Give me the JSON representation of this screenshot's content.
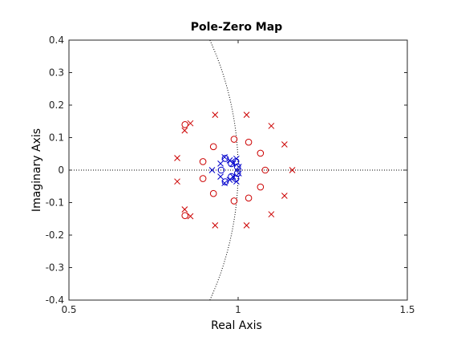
{
  "chart_data": {
    "type": "scatter",
    "title": "Pole-Zero Map",
    "xlabel": "Real Axis",
    "ylabel": "Imaginary Axis",
    "xlim": [
      0.5,
      1.5
    ],
    "ylim": [
      -0.4,
      0.4
    ],
    "xticks": [
      0.5,
      1,
      1.5
    ],
    "xtick_labels": [
      "0.5",
      "1",
      "1.5"
    ],
    "yticks": [
      -0.4,
      -0.3,
      -0.2,
      -0.1,
      0,
      0.1,
      0.2,
      0.3,
      0.4
    ],
    "ytick_labels": [
      "-0.4",
      "-0.3",
      "-0.2",
      "-0.1",
      "0",
      "0.1",
      "0.2",
      "0.3",
      "0.4"
    ],
    "grid": false,
    "reference_lines": {
      "unit_circle": true,
      "real_axis": true,
      "style": "dotted"
    },
    "series": [
      {
        "color": "#cc0000",
        "marker": "x",
        "points": [
          [
            0.932,
            0.17
          ],
          [
            1.025,
            0.17
          ],
          [
            1.098,
            0.136
          ],
          [
            1.137,
            0.079
          ],
          [
            1.16,
            0.0
          ],
          [
            1.137,
            -0.079
          ],
          [
            1.098,
            -0.136
          ],
          [
            1.025,
            -0.17
          ],
          [
            0.932,
            -0.17
          ],
          [
            0.859,
            0.144
          ],
          [
            0.842,
            0.122
          ],
          [
            0.82,
            0.037
          ],
          [
            0.82,
            -0.035
          ],
          [
            0.842,
            -0.121
          ],
          [
            0.859,
            -0.142
          ]
        ]
      },
      {
        "color": "#cc0000",
        "marker": "o",
        "points": [
          [
            0.843,
            0.14
          ],
          [
            0.927,
            0.072
          ],
          [
            0.988,
            0.095
          ],
          [
            1.031,
            0.086
          ],
          [
            1.066,
            0.052
          ],
          [
            1.08,
            0.0
          ],
          [
            1.066,
            -0.052
          ],
          [
            1.031,
            -0.086
          ],
          [
            0.988,
            -0.095
          ],
          [
            0.927,
            -0.072
          ],
          [
            0.896,
            0.026
          ],
          [
            0.896,
            -0.026
          ],
          [
            0.843,
            -0.14
          ]
        ]
      },
      {
        "color": "#0000cc",
        "marker": "x",
        "points": [
          [
            0.96,
            0.04
          ],
          [
            0.975,
            0.03
          ],
          [
            0.985,
            0.02
          ],
          [
            0.995,
            0.035
          ],
          [
            1.002,
            0.01
          ],
          [
            1.002,
            -0.01
          ],
          [
            0.995,
            -0.035
          ],
          [
            0.985,
            -0.02
          ],
          [
            0.975,
            -0.03
          ],
          [
            0.96,
            -0.04
          ],
          [
            0.948,
            0.02
          ],
          [
            0.948,
            -0.02
          ],
          [
            0.923,
            0.0
          ]
        ]
      },
      {
        "color": "#0000cc",
        "marker": "o",
        "points": [
          [
            0.962,
            0.036
          ],
          [
            0.98,
            0.02
          ],
          [
            0.993,
            0.026
          ],
          [
            0.998,
            0.01
          ],
          [
            0.998,
            -0.01
          ],
          [
            0.993,
            -0.026
          ],
          [
            0.98,
            -0.02
          ],
          [
            0.962,
            -0.036
          ],
          [
            0.95,
            0.0
          ]
        ]
      }
    ]
  }
}
